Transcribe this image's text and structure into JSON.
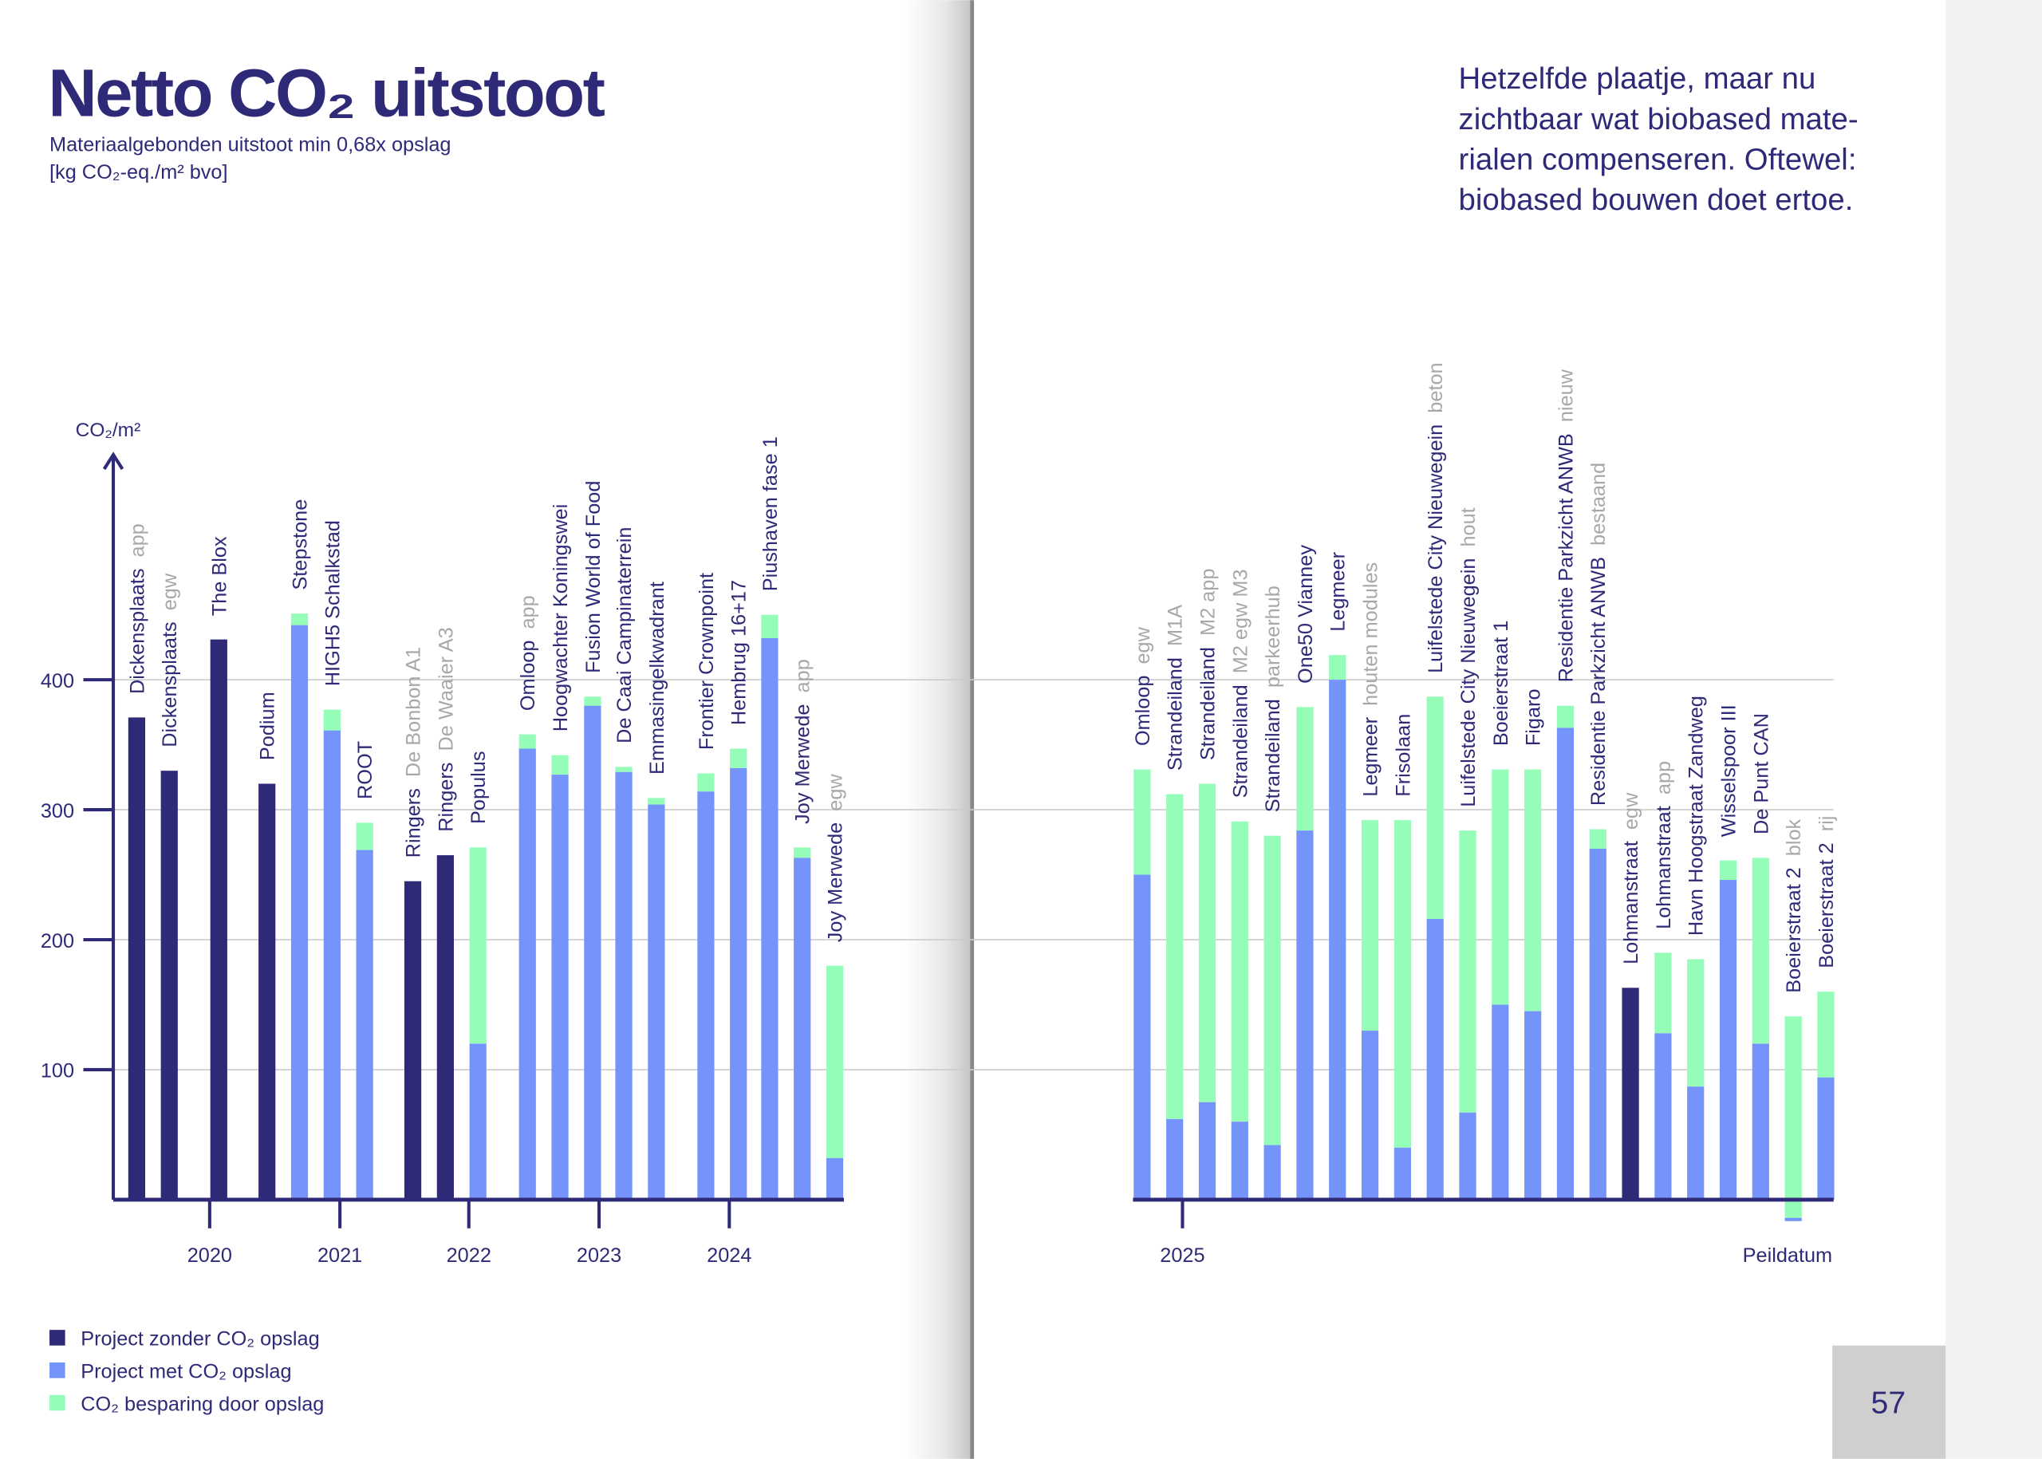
{
  "left_page": {
    "title": "Netto CO₂ uitstoot",
    "subtitle_line1": "Materiaalgebonden uitstoot min 0,68x opslag",
    "subtitle_line2": "[kg CO₂-eq./m² bvo]",
    "legend": [
      {
        "label": "Project zonder CO₂ opslag",
        "color": "#2e2a78"
      },
      {
        "label": "Project met CO₂ opslag",
        "color": "#7594fb"
      },
      {
        "label": "CO₂ besparing door opslag",
        "color": "#96fdb9"
      }
    ]
  },
  "right_page": {
    "intro_lines": [
      "Hetzelfde plaatje, maar nu",
      "zichtbaar wat biobased mate-",
      "rialen compenseren. Oftewel:",
      "biobased bouwen doet ertoe."
    ],
    "page_number": "57"
  },
  "chart_data": {
    "type": "bar",
    "stacked": true,
    "ylabel": "CO₂/m²",
    "yticks": [
      "100",
      "200",
      "300",
      "400"
    ],
    "ylim": [
      -20,
      500
    ],
    "grid": true,
    "xticks_left": [
      "2020",
      "2021",
      "2022",
      "2023",
      "2024"
    ],
    "xticks_right": [
      "2025"
    ],
    "xlabel_right": "Peildatum",
    "colors": {
      "zonder": "#2e2a78",
      "met": "#7594fb",
      "besparing": "#96fdb9"
    },
    "series_note": "net = netto uitstoot (dark/blue bar), total = net + besparing (top of green)",
    "left": [
      {
        "name": "Dickensplaats",
        "suffix": "app",
        "kind": "zonder",
        "net": 371,
        "total": 371
      },
      {
        "name": "Dickensplaats",
        "suffix": "egw",
        "kind": "zonder",
        "net": 330,
        "total": 330
      },
      {
        "name": "The Blox",
        "suffix": "",
        "kind": "zonder",
        "net": 431,
        "total": 431
      },
      {
        "name": "Podium",
        "suffix": "",
        "kind": "zonder",
        "net": 320,
        "total": 320
      },
      {
        "name": "Stepstone",
        "suffix": "",
        "kind": "met",
        "net": 442,
        "total": 451
      },
      {
        "name": "HIGH5 Schalkstad",
        "suffix": "",
        "kind": "met",
        "net": 361,
        "total": 377
      },
      {
        "name": "ROOT",
        "suffix": "",
        "kind": "met",
        "net": 269,
        "total": 290
      },
      {
        "name": "Ringers",
        "suffix": "De Bonbon A1",
        "kind": "zonder",
        "net": 245,
        "total": 245
      },
      {
        "name": "Ringers",
        "suffix": "De Waaier A3",
        "kind": "zonder",
        "net": 265,
        "total": 265
      },
      {
        "name": "Populus",
        "suffix": "",
        "kind": "met",
        "net": 120,
        "total": 271
      },
      {
        "name": "Omloop",
        "suffix": "app",
        "kind": "met",
        "net": 347,
        "total": 358
      },
      {
        "name": "Hoogwachter Koningswei",
        "suffix": "",
        "kind": "met",
        "net": 327,
        "total": 342
      },
      {
        "name": "Fusion World of Food",
        "suffix": "",
        "kind": "met",
        "net": 380,
        "total": 387
      },
      {
        "name": "De Caai Campinaterrein",
        "suffix": "",
        "kind": "met",
        "net": 329,
        "total": 333
      },
      {
        "name": "Emmasingelkwadrant",
        "suffix": "",
        "kind": "met",
        "net": 304,
        "total": 309
      },
      {
        "name": "Frontier Crownpoint",
        "suffix": "",
        "kind": "met",
        "net": 314,
        "total": 328
      },
      {
        "name": "Hembrug 16+17",
        "suffix": "",
        "kind": "met",
        "net": 332,
        "total": 347
      },
      {
        "name": "Piushaven fase 1",
        "suffix": "",
        "kind": "met",
        "net": 432,
        "total": 450
      },
      {
        "name": "Joy Merwede",
        "suffix": "app",
        "kind": "met",
        "net": 263,
        "total": 271
      },
      {
        "name": "Joy Merwede",
        "suffix": "egw",
        "kind": "met",
        "net": 32,
        "total": 180
      }
    ],
    "right": [
      {
        "name": "Omloop",
        "suffix": "egw",
        "kind": "met",
        "net": 250,
        "total": 331
      },
      {
        "name": "Strandeiland",
        "suffix": "M1A",
        "kind": "met",
        "net": 62,
        "total": 312
      },
      {
        "name": "Strandeiland",
        "suffix": "M2 app",
        "kind": "met",
        "net": 75,
        "total": 320
      },
      {
        "name": "Strandeiland",
        "suffix": "M2 egw M3",
        "kind": "met",
        "net": 60,
        "total": 291
      },
      {
        "name": "Strandeiland",
        "suffix": "parkeerhub",
        "kind": "met",
        "net": 42,
        "total": 280
      },
      {
        "name": "One50 Vianney",
        "suffix": "",
        "kind": "met",
        "net": 284,
        "total": 379
      },
      {
        "name": "Legmeer",
        "suffix": "",
        "kind": "met",
        "net": 400,
        "total": 419
      },
      {
        "name": "Legmeer",
        "suffix": "houten modules",
        "kind": "met",
        "net": 130,
        "total": 292
      },
      {
        "name": "Frisolaan",
        "suffix": "",
        "kind": "met",
        "net": 40,
        "total": 292
      },
      {
        "name": "Luifelstede City Nieuwegein",
        "suffix": "beton",
        "kind": "met",
        "net": 216,
        "total": 387
      },
      {
        "name": "Luifelstede City Nieuwegein",
        "suffix": "hout",
        "kind": "met",
        "net": 67,
        "total": 284
      },
      {
        "name": "Boeierstraat 1",
        "suffix": "",
        "kind": "met",
        "net": 150,
        "total": 331
      },
      {
        "name": "Figaro",
        "suffix": "",
        "kind": "met",
        "net": 145,
        "total": 331
      },
      {
        "name": "Residentie Parkzicht ANWB",
        "suffix": "nieuw",
        "kind": "met",
        "net": 363,
        "total": 380
      },
      {
        "name": "Residentie Parkzicht ANWB",
        "suffix": "bestaand",
        "kind": "met",
        "net": 270,
        "total": 285
      },
      {
        "name": "Lohmanstraat",
        "suffix": "egw",
        "kind": "zonder",
        "net": 163,
        "total": 163
      },
      {
        "name": "Lohmanstraat",
        "suffix": "app",
        "kind": "met",
        "net": 128,
        "total": 190
      },
      {
        "name": "Havn Hoogstraat Zandweg",
        "suffix": "",
        "kind": "met",
        "net": 87,
        "total": 185
      },
      {
        "name": "Wisselspoor III",
        "suffix": "",
        "kind": "met",
        "net": 246,
        "total": 261
      },
      {
        "name": "De Punt CAN",
        "suffix": "",
        "kind": "met",
        "net": 120,
        "total": 263
      },
      {
        "name": "Boeierstraat 2",
        "suffix": "blok",
        "kind": "met",
        "net": -14,
        "total": 141
      },
      {
        "name": "Boeierstraat 2",
        "suffix": "rij",
        "kind": "met",
        "net": 94,
        "total": 160
      }
    ]
  }
}
